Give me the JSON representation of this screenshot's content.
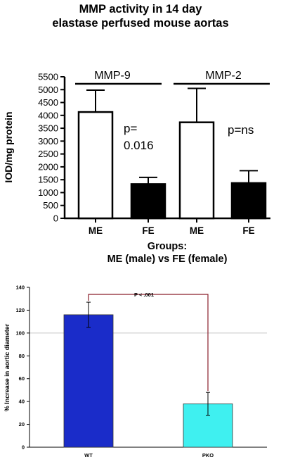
{
  "chart_data": [
    {
      "type": "bar",
      "title_line1": "MMP activity in 14 day",
      "title_line2": "elastase perfused mouse aortas",
      "ylabel": "IOD/mg protein",
      "xlabel_line1": "Groups:",
      "xlabel_line2": "ME (male) vs FE (female)",
      "ylim": [
        0,
        5500
      ],
      "yticks": [
        0,
        500,
        1000,
        1500,
        2000,
        2500,
        3000,
        3500,
        4000,
        4500,
        5000,
        5500
      ],
      "categories": [
        "ME",
        "FE",
        "ME",
        "FE"
      ],
      "values": [
        4130,
        1330,
        3730,
        1370
      ],
      "errors": [
        850,
        260,
        1320,
        480
      ],
      "bar_fill": [
        "#ffffff",
        "#000000",
        "#ffffff",
        "#000000"
      ],
      "groups": [
        {
          "label": "MMP-9",
          "annotation_line1": "p=",
          "annotation_line2": "0.016"
        },
        {
          "label": "MMP-2",
          "annotation_line1": "p=ns",
          "annotation_line2": ""
        }
      ],
      "grid": false
    },
    {
      "type": "bar",
      "ylabel": "% Increase in aortic diameter",
      "ylim": [
        0,
        140
      ],
      "yticks": [
        0,
        20,
        40,
        60,
        80,
        100,
        120,
        140
      ],
      "categories": [
        "WT",
        "PKO"
      ],
      "values": [
        116,
        38
      ],
      "errors": [
        11,
        10
      ],
      "bar_fill": [
        "#1a2cc9",
        "#3ff0f0"
      ],
      "reference_line": 100,
      "annotation": "P < .001",
      "grid": false
    }
  ]
}
